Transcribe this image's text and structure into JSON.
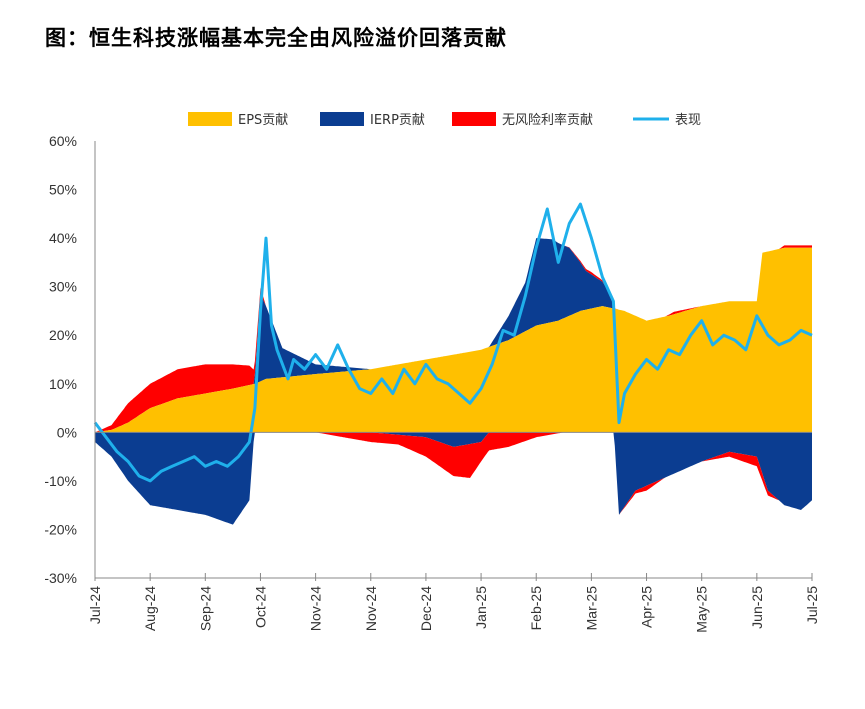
{
  "title": "图：恒生科技涨幅基本完全由风险溢价回落贡献",
  "colors": {
    "eps": "#FFC000",
    "ierp": "#0B3D91",
    "rf": "#FF0000",
    "perf": "#1FB0EB",
    "neg_tick": "#FF0000"
  },
  "chart_data": {
    "type": "area",
    "title": "",
    "xlabel": "",
    "ylabel": "",
    "ylim": [
      -30,
      60
    ],
    "yticks": [
      "60%",
      "50%",
      "40%",
      "30%",
      "20%",
      "10%",
      "0%",
      "-10%",
      "-20%",
      "-30%"
    ],
    "grid": false,
    "legend_position": "top",
    "x_tick_labels": [
      "Jul-24",
      "Aug-24",
      "Sep-24",
      "Oct-24",
      "Nov-24",
      "Nov-24",
      "Dec-24",
      "Jan-25",
      "Feb-25",
      "Mar-25",
      "Apr-25",
      "May-25",
      "Jun-25",
      "Jul-25"
    ],
    "x": [
      "Jul-24",
      "Aug-24",
      "Sep-24",
      "Oct-24",
      "Nov-24",
      "Nov-24b",
      "Dec-24",
      "Jan-25",
      "Feb-25",
      "Mar-25",
      "Apr-25",
      "May-25",
      "Jun-25",
      "Jul-25"
    ],
    "legend": [
      "EPS贡献",
      "IERP贡献",
      "无风险利率贡献",
      "表现"
    ],
    "series": [
      {
        "name": "EPS贡献",
        "kind": "stacked_area",
        "points": [
          [
            0,
            0
          ],
          [
            0.3,
            0.5
          ],
          [
            0.6,
            2
          ],
          [
            1,
            5
          ],
          [
            1.5,
            7
          ],
          [
            2,
            8
          ],
          [
            2.5,
            9
          ],
          [
            2.9,
            10
          ],
          [
            3.1,
            11
          ],
          [
            4,
            12
          ],
          [
            4.5,
            12.5
          ],
          [
            5,
            13
          ],
          [
            5.5,
            14
          ],
          [
            6,
            15
          ],
          [
            6.5,
            16
          ],
          [
            7,
            17
          ],
          [
            7.5,
            19
          ],
          [
            8,
            22
          ],
          [
            8.4,
            23
          ],
          [
            8.8,
            25
          ],
          [
            9.2,
            26
          ],
          [
            9.6,
            25
          ],
          [
            10,
            23
          ],
          [
            10.4,
            24
          ],
          [
            11,
            26
          ],
          [
            11.5,
            27
          ],
          [
            12,
            27
          ],
          [
            12.1,
            37
          ],
          [
            12.5,
            38
          ],
          [
            13,
            38
          ]
        ]
      },
      {
        "name": "IERP贡献",
        "kind": "stacked_area",
        "points": [
          [
            0,
            -2
          ],
          [
            0.3,
            -5
          ],
          [
            0.6,
            -10
          ],
          [
            1,
            -15
          ],
          [
            1.5,
            -16
          ],
          [
            2,
            -17
          ],
          [
            2.5,
            -19
          ],
          [
            2.8,
            -14
          ],
          [
            2.9,
            2
          ],
          [
            3.0,
            18
          ],
          [
            3.1,
            15
          ],
          [
            3.4,
            6
          ],
          [
            3.7,
            4
          ],
          [
            4,
            2
          ],
          [
            4.5,
            1
          ],
          [
            5,
            0
          ],
          [
            6,
            -1
          ],
          [
            6.5,
            -3
          ],
          [
            7,
            -2
          ],
          [
            7.5,
            5
          ],
          [
            7.8,
            10
          ],
          [
            8,
            18
          ],
          [
            8.3,
            17
          ],
          [
            8.6,
            14
          ],
          [
            8.9,
            8
          ],
          [
            9.2,
            5
          ],
          [
            9.4,
            2
          ],
          [
            9.5,
            -17
          ],
          [
            9.8,
            -12
          ],
          [
            10.2,
            -10
          ],
          [
            10.6,
            -8
          ],
          [
            11,
            -6
          ],
          [
            11.5,
            -4
          ],
          [
            12,
            -5
          ],
          [
            12.2,
            -12
          ],
          [
            12.5,
            -15
          ],
          [
            12.8,
            -16
          ],
          [
            13,
            -14
          ]
        ]
      },
      {
        "name": "无风险利率贡献",
        "kind": "stacked_area",
        "points": [
          [
            0,
            0
          ],
          [
            0.3,
            1
          ],
          [
            0.6,
            4
          ],
          [
            1,
            5
          ],
          [
            1.5,
            6
          ],
          [
            2,
            6
          ],
          [
            2.5,
            5
          ],
          [
            2.8,
            4
          ],
          [
            3.1,
            0
          ],
          [
            4,
            0
          ],
          [
            4.5,
            -1
          ],
          [
            5,
            -2
          ],
          [
            5.5,
            -2
          ],
          [
            6,
            -4
          ],
          [
            6.5,
            -6
          ],
          [
            6.8,
            -7
          ],
          [
            7,
            -4
          ],
          [
            7.5,
            -3
          ],
          [
            8,
            -1
          ],
          [
            8.5,
            0
          ],
          [
            9,
            0.5
          ],
          [
            9.5,
            0
          ],
          [
            10,
            -1
          ],
          [
            10.5,
            0.5
          ],
          [
            11,
            0
          ],
          [
            11.5,
            -1
          ],
          [
            12,
            -2
          ],
          [
            12.5,
            0.5
          ],
          [
            13,
            0.5
          ]
        ]
      },
      {
        "name": "表现",
        "kind": "line",
        "points": [
          [
            0,
            2
          ],
          [
            0.2,
            -1
          ],
          [
            0.4,
            -4
          ],
          [
            0.6,
            -6
          ],
          [
            0.8,
            -9
          ],
          [
            1,
            -10
          ],
          [
            1.2,
            -8
          ],
          [
            1.4,
            -7
          ],
          [
            1.6,
            -6
          ],
          [
            1.8,
            -5
          ],
          [
            2,
            -7
          ],
          [
            2.2,
            -6
          ],
          [
            2.4,
            -7
          ],
          [
            2.6,
            -5
          ],
          [
            2.8,
            -2
          ],
          [
            2.9,
            5
          ],
          [
            3.0,
            25
          ],
          [
            3.1,
            40
          ],
          [
            3.2,
            22
          ],
          [
            3.3,
            17
          ],
          [
            3.5,
            11
          ],
          [
            3.6,
            15
          ],
          [
            3.8,
            13
          ],
          [
            4,
            16
          ],
          [
            4.2,
            13
          ],
          [
            4.4,
            18
          ],
          [
            4.6,
            13
          ],
          [
            4.8,
            9
          ],
          [
            5,
            8
          ],
          [
            5.2,
            11
          ],
          [
            5.4,
            8
          ],
          [
            5.6,
            13
          ],
          [
            5.8,
            10
          ],
          [
            6,
            14
          ],
          [
            6.2,
            11
          ],
          [
            6.4,
            10
          ],
          [
            6.6,
            8
          ],
          [
            6.8,
            6
          ],
          [
            7,
            9
          ],
          [
            7.2,
            14
          ],
          [
            7.4,
            21
          ],
          [
            7.6,
            20
          ],
          [
            7.8,
            28
          ],
          [
            8,
            38
          ],
          [
            8.2,
            46
          ],
          [
            8.4,
            35
          ],
          [
            8.6,
            43
          ],
          [
            8.8,
            47
          ],
          [
            9,
            40
          ],
          [
            9.2,
            32
          ],
          [
            9.4,
            27
          ],
          [
            9.5,
            2
          ],
          [
            9.6,
            8
          ],
          [
            9.8,
            12
          ],
          [
            10,
            15
          ],
          [
            10.2,
            13
          ],
          [
            10.4,
            17
          ],
          [
            10.6,
            16
          ],
          [
            10.8,
            20
          ],
          [
            11,
            23
          ],
          [
            11.2,
            18
          ],
          [
            11.4,
            20
          ],
          [
            11.6,
            19
          ],
          [
            11.8,
            17
          ],
          [
            12,
            24
          ],
          [
            12.2,
            20
          ],
          [
            12.4,
            18
          ],
          [
            12.6,
            19
          ],
          [
            12.8,
            21
          ],
          [
            13,
            20
          ]
        ]
      }
    ]
  }
}
